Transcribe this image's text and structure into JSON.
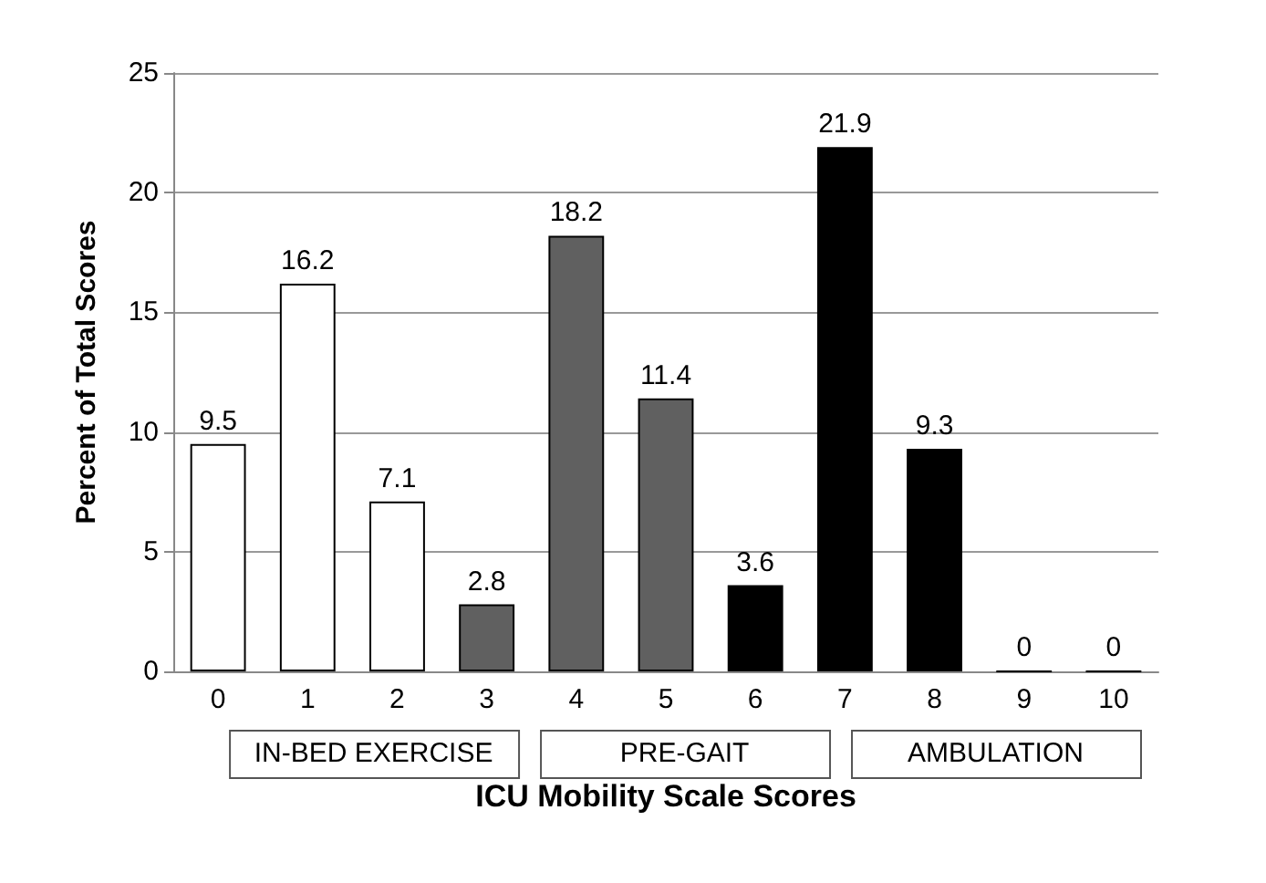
{
  "chart_data": {
    "type": "bar",
    "xlabel": "ICU Mobility Scale Scores",
    "ylabel": "Percent of Total Scores",
    "categories": [
      "0",
      "1",
      "2",
      "3",
      "4",
      "5",
      "6",
      "7",
      "8",
      "9",
      "10"
    ],
    "values": [
      9.5,
      16.2,
      7.1,
      2.8,
      18.2,
      11.4,
      3.6,
      21.9,
      9.3,
      0,
      0
    ],
    "colors": [
      "#ffffff",
      "#ffffff",
      "#ffffff",
      "#606060",
      "#606060",
      "#606060",
      "#000000",
      "#000000",
      "#000000",
      "#000000",
      "#000000"
    ],
    "ylim": [
      0,
      25
    ],
    "yticks": [
      0,
      5,
      10,
      15,
      20,
      25
    ],
    "grid": "y",
    "data_labels": true,
    "annotations": [
      "IN-BED EXERCISE",
      "PRE-GAIT",
      "AMBULATION"
    ]
  }
}
